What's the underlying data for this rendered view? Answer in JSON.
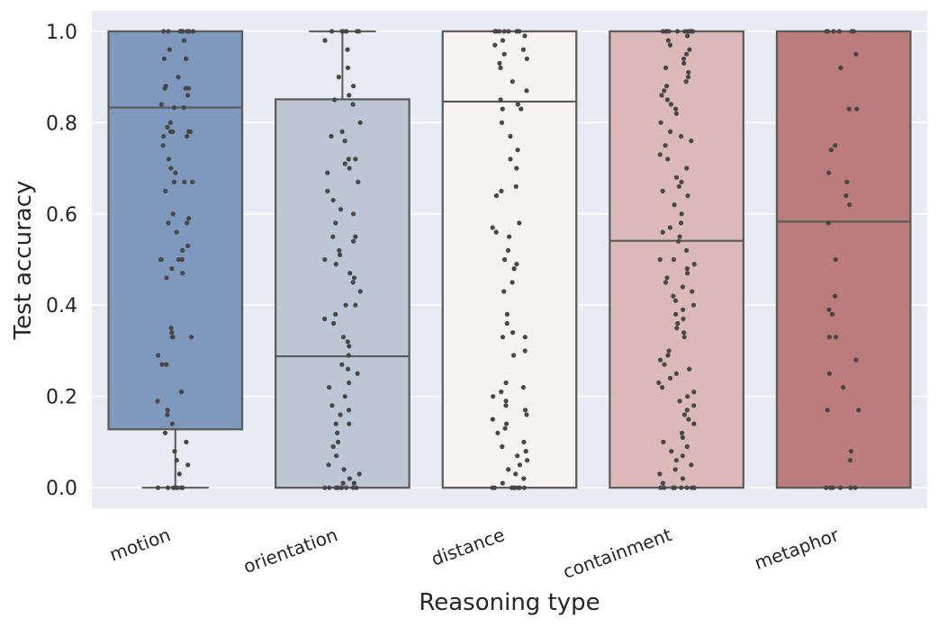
{
  "chart_data": {
    "type": "box",
    "title": "",
    "xlabel": "Reasoning type",
    "ylabel": "Test accuracy",
    "ylim": [
      -0.045,
      1.045
    ],
    "yticks": [
      "0.0",
      "0.2",
      "0.4",
      "0.6",
      "0.8",
      "1.0"
    ],
    "grid": true,
    "legend": "none",
    "categories": [
      "motion",
      "orientation",
      "distance",
      "containment",
      "metaphor"
    ],
    "colors": [
      "#7f98bd",
      "#bdc6d5",
      "#f7f3f3",
      "#dbb9b8",
      "#bb7c7b"
    ],
    "background": "#eaeaf2",
    "line_color": "#595959",
    "point_color": "#474747",
    "boxes": [
      {
        "min": 0.0,
        "q1": 0.128,
        "median": 0.833,
        "q3": 1.0,
        "max": 1.0
      },
      {
        "min": 0.0,
        "q1": 0.0,
        "median": 0.288,
        "q3": 0.851,
        "max": 1.0
      },
      {
        "min": 0.0,
        "q1": 0.0,
        "median": 0.846,
        "q3": 1.0,
        "max": 1.0
      },
      {
        "min": 0.0,
        "q1": 0.0,
        "median": 0.541,
        "q3": 1.0,
        "max": 1.0
      },
      {
        "min": 0.0,
        "q1": 0.0,
        "median": 0.583,
        "q3": 1.0,
        "max": 1.0
      }
    ],
    "points": [
      [
        1.0,
        1.0,
        1.0,
        1.0,
        1.0,
        1.0,
        1.0,
        1.0,
        1.0,
        1.0,
        0.98,
        0.96,
        0.94,
        0.94,
        0.9,
        0.88,
        0.875,
        0.875,
        0.875,
        0.86,
        0.84,
        0.833,
        0.833,
        0.8,
        0.79,
        0.78,
        0.78,
        0.78,
        0.78,
        0.78,
        0.77,
        0.77,
        0.75,
        0.72,
        0.7,
        0.69,
        0.67,
        0.67,
        0.67,
        0.65,
        0.6,
        0.59,
        0.58,
        0.58,
        0.56,
        0.53,
        0.52,
        0.5,
        0.5,
        0.5,
        0.5,
        0.48,
        0.47,
        0.46,
        0.35,
        0.34,
        0.33,
        0.33,
        0.33,
        0.29,
        0.27,
        0.27,
        0.21,
        0.19,
        0.17,
        0.16,
        0.14,
        0.12,
        0.1,
        0.08,
        0.06,
        0.05,
        0.03,
        0.0,
        0.0,
        0.0,
        0.0,
        0.0,
        0.0,
        0.0
      ],
      [
        1.0,
        1.0,
        1.0,
        1.0,
        1.0,
        1.0,
        0.98,
        0.96,
        0.92,
        0.9,
        0.88,
        0.86,
        0.85,
        0.84,
        0.8,
        0.78,
        0.77,
        0.76,
        0.72,
        0.72,
        0.71,
        0.7,
        0.69,
        0.67,
        0.65,
        0.63,
        0.61,
        0.6,
        0.58,
        0.55,
        0.55,
        0.54,
        0.52,
        0.51,
        0.5,
        0.49,
        0.47,
        0.46,
        0.45,
        0.43,
        0.4,
        0.4,
        0.38,
        0.37,
        0.36,
        0.33,
        0.32,
        0.31,
        0.29,
        0.27,
        0.26,
        0.25,
        0.23,
        0.22,
        0.2,
        0.18,
        0.17,
        0.16,
        0.14,
        0.14,
        0.12,
        0.1,
        0.09,
        0.07,
        0.05,
        0.04,
        0.03,
        0.02,
        0.01,
        0.01,
        0.0,
        0.0,
        0.0,
        0.0,
        0.0,
        0.0,
        0.0,
        0.0,
        0.0,
        0.0
      ],
      [
        1.0,
        1.0,
        1.0,
        1.0,
        1.0,
        1.0,
        1.0,
        1.0,
        1.0,
        1.0,
        0.99,
        0.98,
        0.97,
        0.96,
        0.95,
        0.94,
        0.93,
        0.92,
        0.89,
        0.87,
        0.85,
        0.84,
        0.83,
        0.83,
        0.8,
        0.77,
        0.74,
        0.72,
        0.7,
        0.66,
        0.65,
        0.64,
        0.58,
        0.57,
        0.56,
        0.55,
        0.52,
        0.5,
        0.49,
        0.48,
        0.45,
        0.43,
        0.38,
        0.36,
        0.34,
        0.33,
        0.33,
        0.3,
        0.29,
        0.23,
        0.22,
        0.21,
        0.2,
        0.19,
        0.18,
        0.17,
        0.16,
        0.15,
        0.14,
        0.13,
        0.12,
        0.1,
        0.09,
        0.08,
        0.07,
        0.06,
        0.05,
        0.04,
        0.03,
        0.02,
        0.01,
        0.0,
        0.0,
        0.0,
        0.0,
        0.0,
        0.0,
        0.0,
        0.0,
        0.0
      ],
      [
        1.0,
        1.0,
        1.0,
        1.0,
        1.0,
        1.0,
        1.0,
        1.0,
        1.0,
        1.0,
        0.99,
        0.98,
        0.97,
        0.96,
        0.95,
        0.94,
        0.93,
        0.92,
        0.91,
        0.9,
        0.89,
        0.88,
        0.87,
        0.86,
        0.85,
        0.84,
        0.83,
        0.82,
        0.8,
        0.78,
        0.77,
        0.76,
        0.75,
        0.73,
        0.72,
        0.7,
        0.68,
        0.67,
        0.66,
        0.65,
        0.64,
        0.62,
        0.6,
        0.58,
        0.57,
        0.56,
        0.55,
        0.54,
        0.52,
        0.5,
        0.5,
        0.49,
        0.48,
        0.47,
        0.46,
        0.45,
        0.44,
        0.43,
        0.42,
        0.41,
        0.4,
        0.39,
        0.38,
        0.37,
        0.36,
        0.35,
        0.34,
        0.33,
        0.3,
        0.29,
        0.28,
        0.27,
        0.26,
        0.25,
        0.24,
        0.23,
        0.22,
        0.21,
        0.2,
        0.19,
        0.18,
        0.17,
        0.16,
        0.15,
        0.14,
        0.12,
        0.11,
        0.1,
        0.09,
        0.08,
        0.07,
        0.06,
        0.05,
        0.04,
        0.03,
        0.02,
        0.01,
        0.0,
        0.0,
        0.0,
        0.0,
        0.0,
        0.0,
        0.0,
        0.0,
        0.0,
        0.0
      ],
      [
        1.0,
        1.0,
        1.0,
        1.0,
        1.0,
        1.0,
        0.95,
        0.92,
        0.83,
        0.83,
        0.75,
        0.74,
        0.69,
        0.67,
        0.64,
        0.62,
        0.58,
        0.5,
        0.42,
        0.39,
        0.38,
        0.33,
        0.33,
        0.28,
        0.25,
        0.22,
        0.17,
        0.17,
        0.08,
        0.06,
        0.0,
        0.0,
        0.0,
        0.0,
        0.0,
        0.0
      ]
    ]
  }
}
